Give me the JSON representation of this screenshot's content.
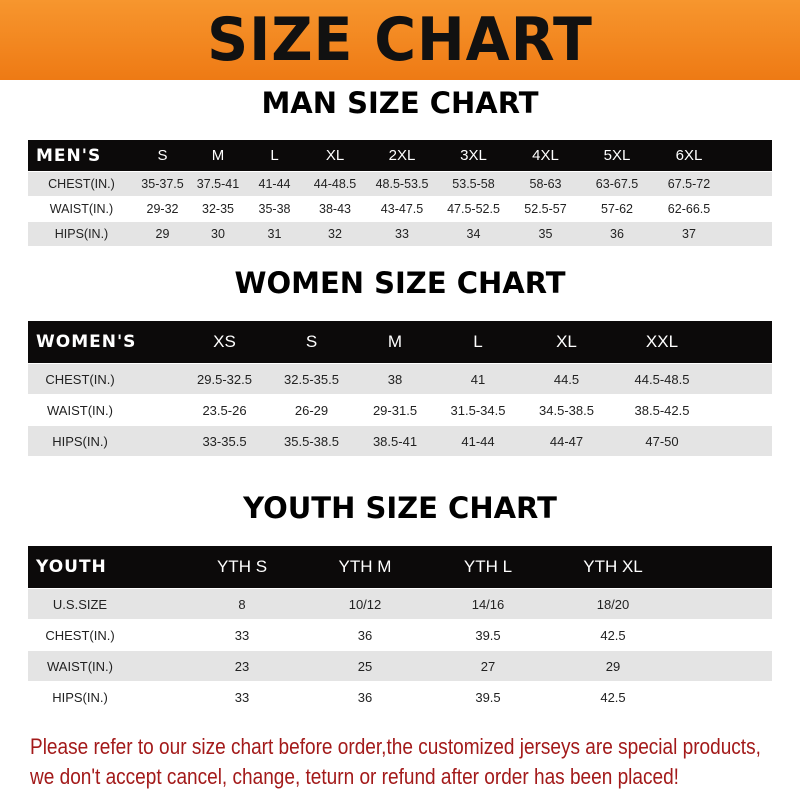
{
  "banner": {
    "title": "SIZE CHART",
    "color": "#f0821a"
  },
  "men": {
    "title": "MAN SIZE CHART",
    "header": [
      "MEN'S",
      "S",
      "M",
      "L",
      "XL",
      "2XL",
      "3XL",
      "4XL",
      "5XL",
      "6XL"
    ],
    "rows": [
      [
        "CHEST(IN.)",
        "35-37.5",
        "37.5-41",
        "41-44",
        "44-48.5",
        "48.5-53.5",
        "53.5-58",
        "58-63",
        "63-67.5",
        "67.5-72"
      ],
      [
        "WAIST(IN.)",
        "29-32",
        "32-35",
        "35-38",
        "38-43",
        "43-47.5",
        "47.5-52.5",
        "52.5-57",
        "57-62",
        "62-66.5"
      ],
      [
        "HIPS(IN.)",
        "29",
        "30",
        "31",
        "32",
        "33",
        "34",
        "35",
        "36",
        "37"
      ]
    ]
  },
  "women": {
    "title": "WOMEN SIZE CHART",
    "header": [
      "WOMEN'S",
      "XS",
      "S",
      "M",
      "L",
      "XL",
      "XXL"
    ],
    "rows": [
      [
        "CHEST(IN.)",
        "29.5-32.5",
        "32.5-35.5",
        "38",
        "41",
        "44.5",
        "44.5-48.5"
      ],
      [
        "WAIST(IN.)",
        "23.5-26",
        "26-29",
        "29-31.5",
        "31.5-34.5",
        "34.5-38.5",
        "38.5-42.5"
      ],
      [
        "HIPS(IN.)",
        "33-35.5",
        "35.5-38.5",
        "38.5-41",
        "41-44",
        "44-47",
        "47-50"
      ]
    ]
  },
  "youth": {
    "title": "YOUTH SIZE CHART",
    "header": [
      "YOUTH",
      "YTH S",
      "YTH M",
      "YTH L",
      "YTH XL"
    ],
    "rows": [
      [
        "U.S.SIZE",
        "8",
        "10/12",
        "14/16",
        "18/20"
      ],
      [
        "CHEST(IN.)",
        "33",
        "36",
        "39.5",
        "42.5"
      ],
      [
        "WAIST(IN.)",
        "23",
        "25",
        "27",
        "29"
      ],
      [
        "HIPS(IN.)",
        "33",
        "36",
        "39.5",
        "42.5"
      ]
    ]
  },
  "note": {
    "line1": "Please refer to our size chart before order,the customized jerseys are special products,",
    "line2": "we don't accept cancel, change, teturn or refund after order has been placed!",
    "color": "#a31a1a"
  }
}
